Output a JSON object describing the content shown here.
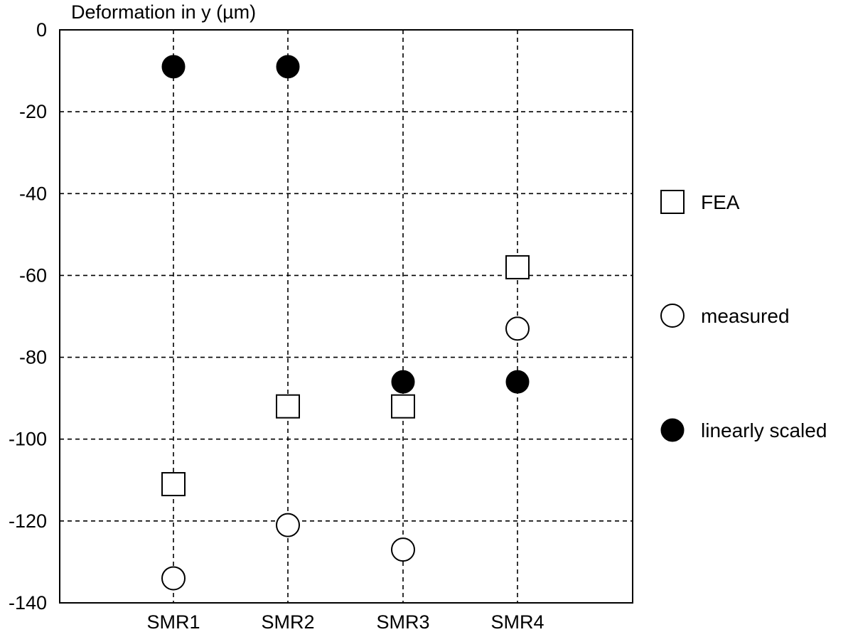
{
  "chart_data": {
    "type": "scatter",
    "title": "",
    "xlabel": "",
    "ylabel": "Deformation in y (µm)",
    "categories": [
      "SMR1",
      "SMR2",
      "SMR3",
      "SMR4"
    ],
    "ylim": [
      -140,
      0
    ],
    "yticks": [
      0,
      -20,
      -40,
      -60,
      -80,
      -100,
      -120,
      -140
    ],
    "ytick_labels": [
      "0",
      "-20",
      "-40",
      "-60",
      "-80",
      "-100",
      "-120",
      "-140"
    ],
    "grid": true,
    "legend_position": "right",
    "series": [
      {
        "name": "FEA",
        "marker": "open-square",
        "values": [
          -111,
          -92,
          -92,
          -58
        ]
      },
      {
        "name": "measured",
        "marker": "open-circle",
        "values": [
          -134,
          -121,
          -127,
          -73
        ]
      },
      {
        "name": "linearly scaled",
        "marker": "filled-circle",
        "values": [
          -9,
          -9,
          -86,
          -86
        ]
      }
    ]
  }
}
